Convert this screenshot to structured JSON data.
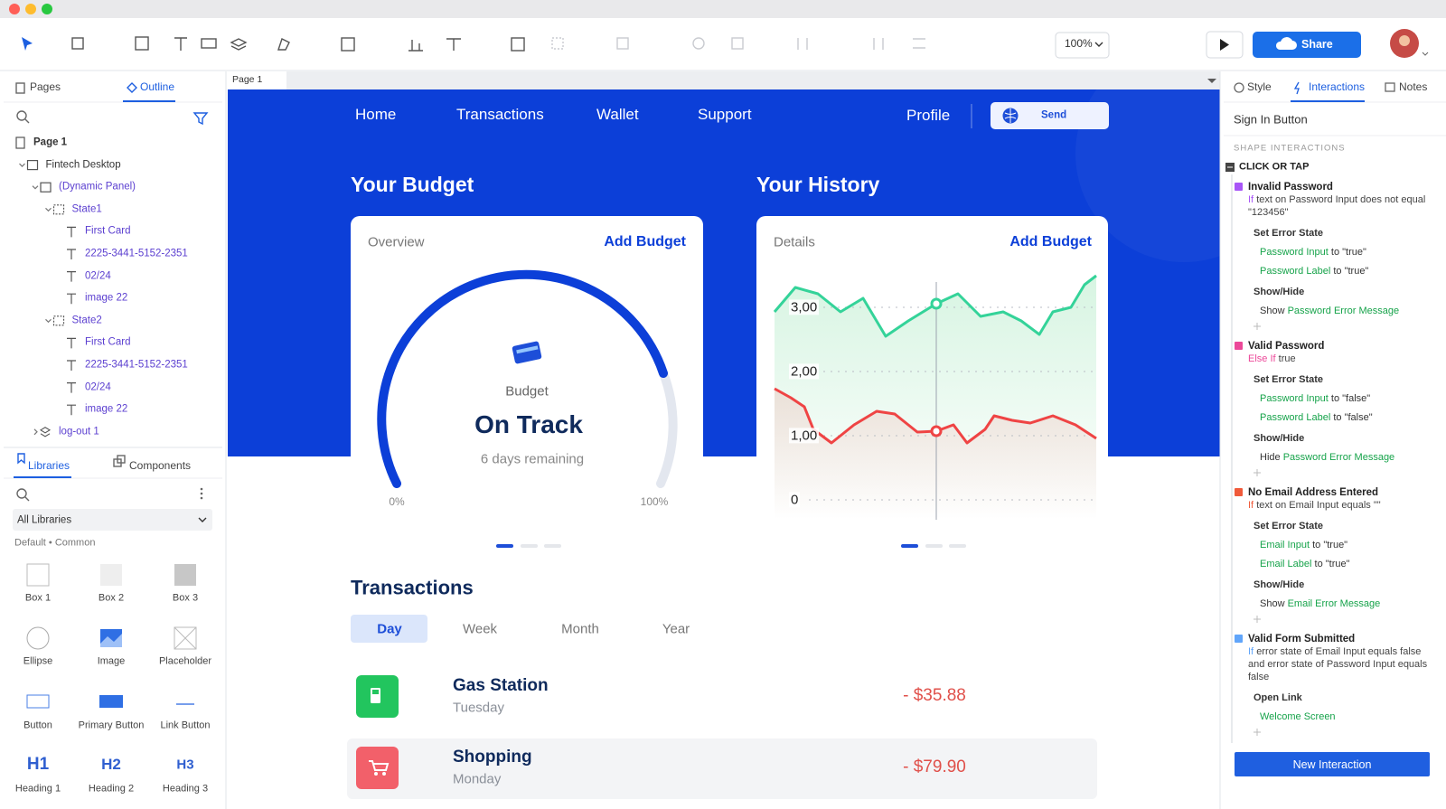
{
  "window": {
    "zoom": "100%",
    "share": "Share"
  },
  "left_panel": {
    "tabs": [
      "Pages",
      "Outline"
    ],
    "outline": [
      {
        "label": "Page 1",
        "children": [
          {
            "label": "Fintech Desktop",
            "children": [
              {
                "label": "(Dynamic Panel)",
                "children": [
                  {
                    "label": "State1",
                    "children": [
                      {
                        "label": "First Card"
                      },
                      {
                        "label": "2225-3441-5152-2351"
                      },
                      {
                        "label": "02/24"
                      },
                      {
                        "label": "image 22"
                      }
                    ]
                  },
                  {
                    "label": "State2",
                    "children": [
                      {
                        "label": "First Card"
                      },
                      {
                        "label": "2225-3441-5152-2351"
                      },
                      {
                        "label": "02/24"
                      },
                      {
                        "label": "image 22"
                      }
                    ]
                  }
                ]
              },
              {
                "label": "log-out 1",
                "collapsed": true
              }
            ]
          }
        ]
      }
    ],
    "library_tabs": [
      "Libraries",
      "Components"
    ],
    "library_select": "All Libraries",
    "library_path": "Default • Common",
    "widgets": [
      {
        "label": "Box 1"
      },
      {
        "label": "Box 2"
      },
      {
        "label": "Box 3"
      },
      {
        "label": "Ellipse"
      },
      {
        "label": "Image"
      },
      {
        "label": "Placeholder"
      },
      {
        "label": "Button"
      },
      {
        "label": "Primary Button"
      },
      {
        "label": "Link Button"
      },
      {
        "label": "Heading 1",
        "glyph": "H1"
      },
      {
        "label": "Heading 2",
        "glyph": "H2"
      },
      {
        "label": "Heading 3",
        "glyph": "H3"
      }
    ]
  },
  "canvas": {
    "tab": "Page 1",
    "nav": [
      "Home",
      "Transactions",
      "Wallet",
      "Support"
    ],
    "profile": "Profile",
    "send": "Send",
    "budget": {
      "heading": "Your Budget",
      "tab": "Overview",
      "action": "Add Budget",
      "label": "Budget",
      "status": "On Track",
      "remaining": "6 days remaining",
      "min": "0%",
      "max": "100%"
    },
    "history": {
      "heading": "Your History",
      "tab": "Details",
      "action": "Add Budget",
      "y_labels": [
        "3,00",
        "2,00",
        "1,00",
        "0"
      ]
    },
    "transactions": {
      "heading": "Transactions",
      "periods": [
        "Day",
        "Week",
        "Month",
        "Year"
      ],
      "items": [
        {
          "name": "Gas Station",
          "day": "Tuesday",
          "amount": "- $35.88",
          "color": "#22c55e"
        },
        {
          "name": "Shopping",
          "day": "Monday",
          "amount": "- $79.90",
          "color": "#f2606a"
        }
      ]
    }
  },
  "right_panel": {
    "tabs": [
      "Style",
      "Interactions",
      "Notes"
    ],
    "title": "Sign In Button",
    "section": "SHAPE INTERACTIONS",
    "trigger": "CLICK OR TAP",
    "interactions": [
      {
        "title": "Invalid Password",
        "color": "#a855f7",
        "condition": {
          "keyword": "If",
          "text": "text on Password Input does not equal \"123456\""
        },
        "actions": [
          {
            "name": "Set Error State",
            "items": [
              {
                "target": "Password Input",
                "value": "to \"true\""
              },
              {
                "target": "Password Label",
                "value": "to \"true\""
              }
            ]
          },
          {
            "name": "Show/Hide",
            "items": [
              {
                "verb": "Show",
                "target": "Password Error Message"
              }
            ]
          }
        ]
      },
      {
        "title": "Valid Password",
        "color": "#ec4899",
        "condition": {
          "keyword": "Else If",
          "text": "true"
        },
        "actions": [
          {
            "name": "Set Error State",
            "items": [
              {
                "target": "Password Input",
                "value": "to \"false\""
              },
              {
                "target": "Password Label",
                "value": "to \"false\""
              }
            ]
          },
          {
            "name": "Show/Hide",
            "items": [
              {
                "verb": "Hide",
                "target": "Password Error Message"
              }
            ]
          }
        ]
      },
      {
        "title": "No Email Address Entered",
        "color": "#f05a3a",
        "condition": {
          "keyword": "If",
          "text": "text on Email Input equals \"\""
        },
        "actions": [
          {
            "name": "Set Error State",
            "items": [
              {
                "target": "Email Input",
                "value": "to \"true\""
              },
              {
                "target": "Email Label",
                "value": "to \"true\""
              }
            ]
          },
          {
            "name": "Show/Hide",
            "items": [
              {
                "verb": "Show",
                "target": "Email Error Message"
              }
            ]
          }
        ]
      },
      {
        "title": "Valid Form Submitted",
        "color": "#60a5fa",
        "condition": {
          "keyword": "If",
          "text": "error state of Email Input equals false and error state of Password Input equals false"
        },
        "actions": [
          {
            "name": "Open Link",
            "items": [
              {
                "target": "Welcome Screen"
              }
            ]
          }
        ]
      }
    ],
    "button": "New Interaction"
  }
}
